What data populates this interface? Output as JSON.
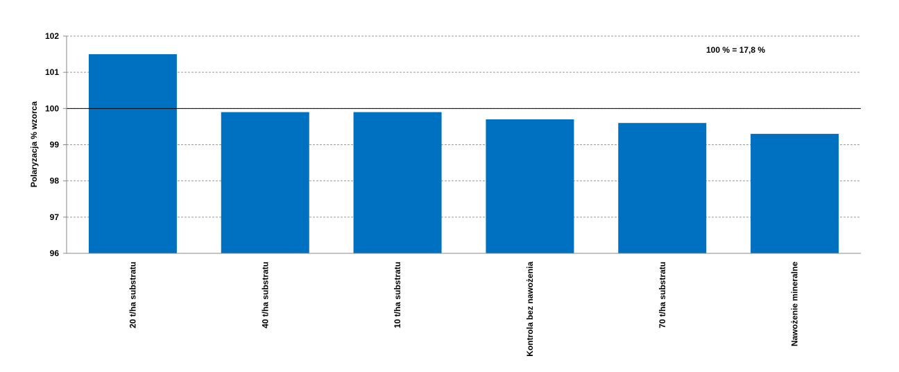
{
  "chart_data": {
    "type": "bar",
    "categories": [
      "20 t/ha substratu",
      "40 t/ha substratu",
      "10 t/ha substratu",
      "Kontrola bez nawożenia",
      "70 t/ha substratu",
      "Nawożenie mineralne"
    ],
    "values": [
      101.5,
      99.9,
      99.9,
      99.7,
      99.6,
      99.3
    ],
    "ylabel": "Polaryzacja % wzorca",
    "ylim": [
      96,
      102
    ],
    "yticks": [
      96,
      97,
      98,
      99,
      100,
      101,
      102
    ],
    "reference_line": 100,
    "annotation": "100 % =  17,8 %",
    "grid": true,
    "bar_color": "#0070c0"
  }
}
